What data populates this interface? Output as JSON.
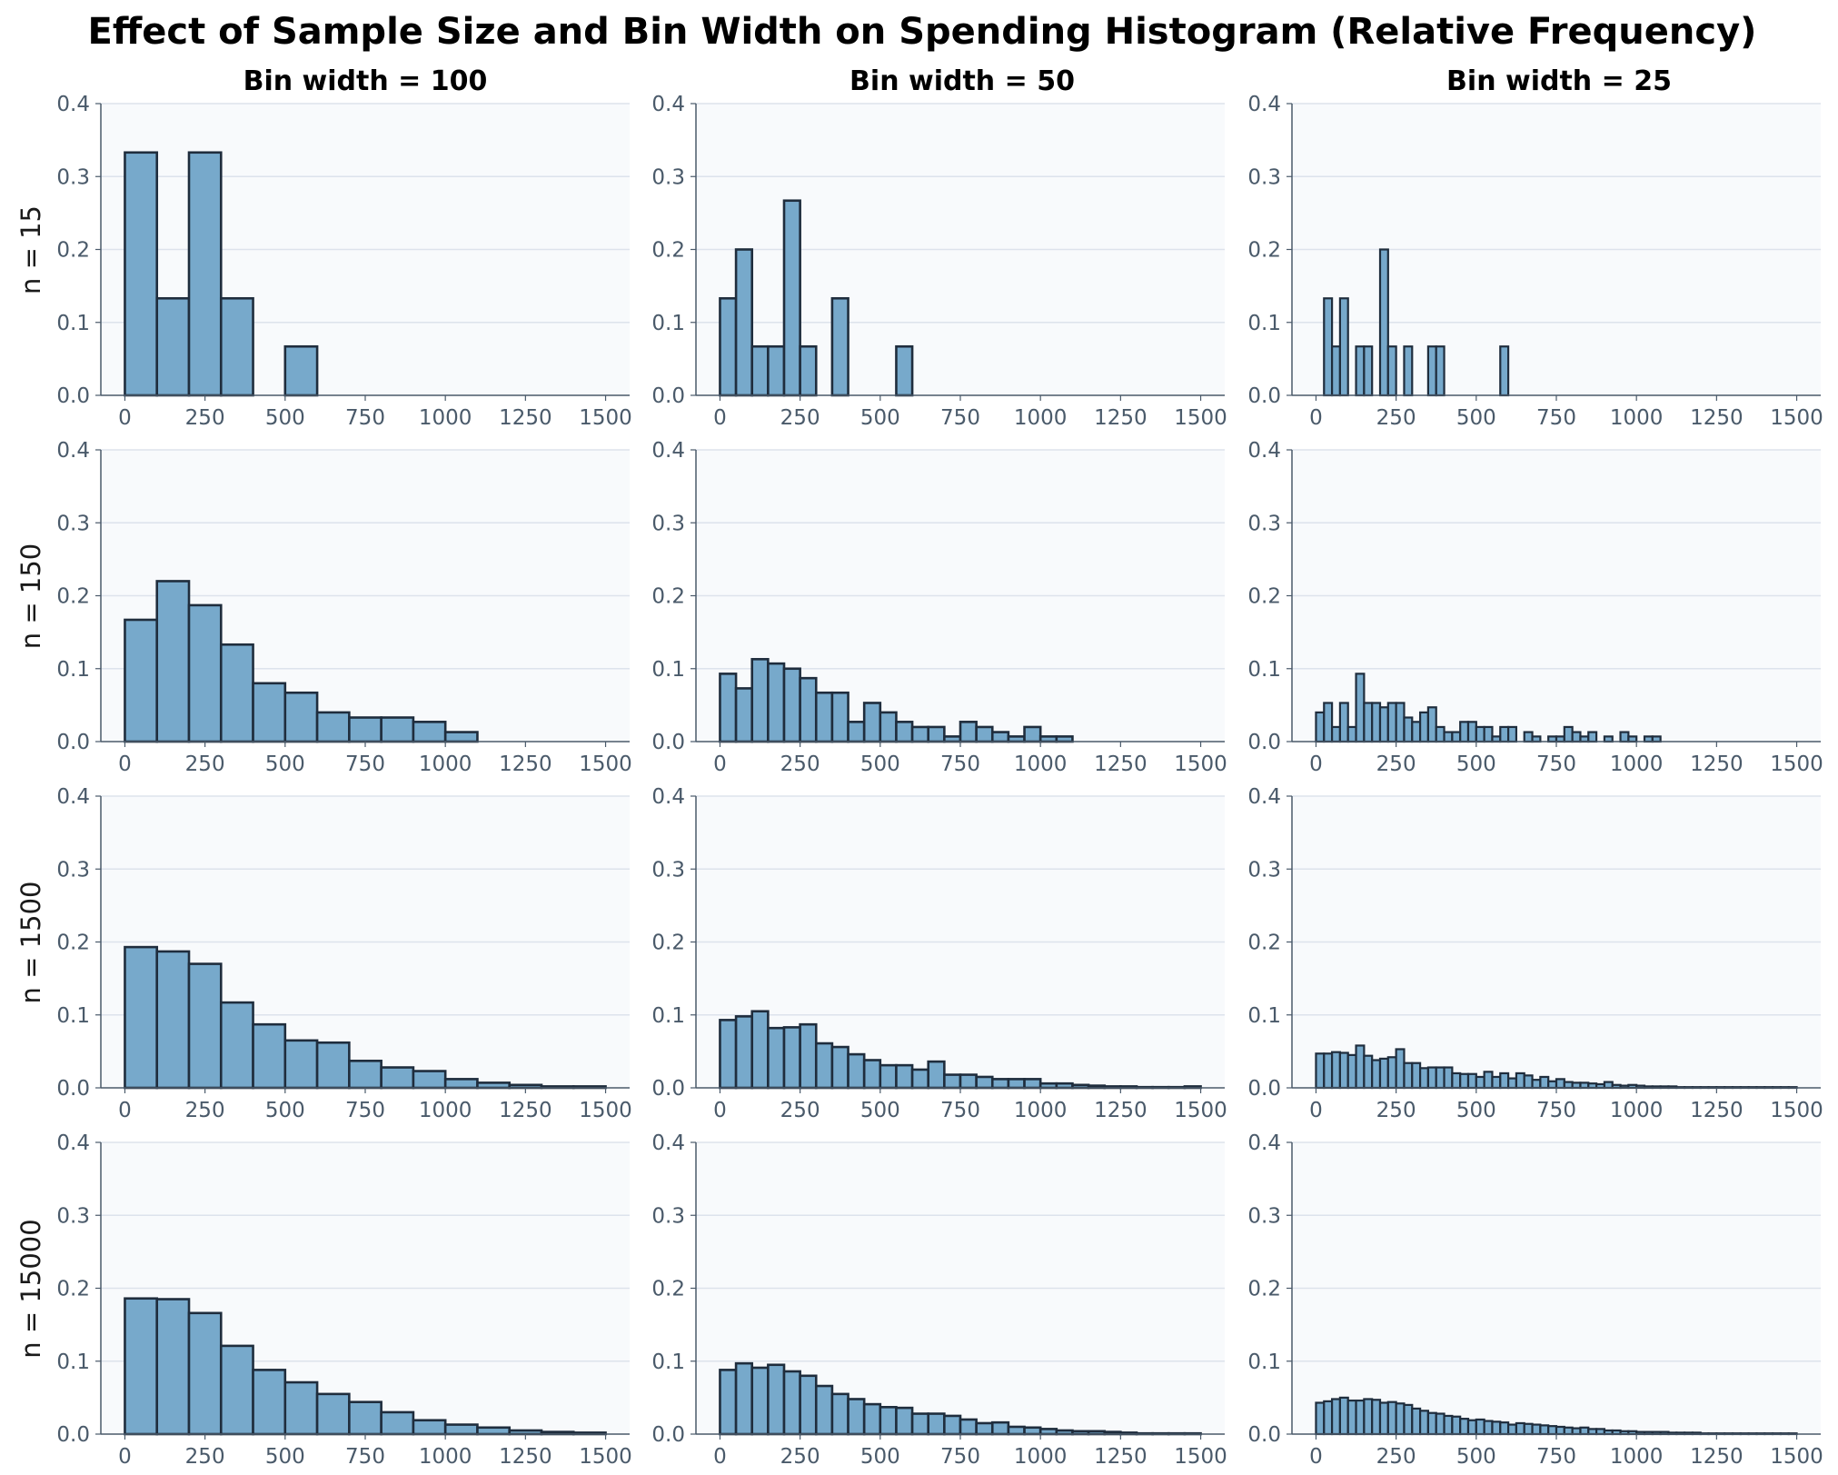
{
  "chart_data": {
    "type": "bar",
    "title": "Effect of Sample Size and Bin Width on Spending Histogram (Relative Frequency)",
    "column_titles": [
      "Bin width = 100",
      "Bin width = 50",
      "Bin width = 25"
    ],
    "row_labels": [
      "n = 15",
      "n = 150",
      "n = 1500",
      "n = 15000"
    ],
    "bin_widths": [
      100,
      50,
      25
    ],
    "xlim": [
      -75,
      1575
    ],
    "ylim": [
      0,
      0.4
    ],
    "xticks": [
      0,
      250,
      500,
      750,
      1000,
      1250,
      1500
    ],
    "yticks": [
      0.0,
      0.1,
      0.2,
      0.3,
      0.4
    ],
    "xtick_labels": [
      "0",
      "250",
      "500",
      "750",
      "1000",
      "1250",
      "1500"
    ],
    "ytick_labels": [
      "0.0",
      "0.1",
      "0.2",
      "0.3",
      "0.4"
    ],
    "grid": "horizontal",
    "bar_color": "#77a9cb",
    "edge_color": "#1f2d3d",
    "axes_bg": "#f8fafc",
    "grid_color": "#dde3ec",
    "tick_color": "#4a5a6a",
    "panels": [
      [
        {
          "bin_width": 100,
          "values": [
            0.333,
            0.133,
            0.333,
            0.133,
            0,
            0.067
          ]
        },
        {
          "bin_width": 50,
          "values": [
            0.133,
            0.2,
            0.067,
            0.067,
            0.267,
            0.067,
            0,
            0.133,
            0,
            0,
            0,
            0.067
          ]
        },
        {
          "bin_width": 25,
          "values": [
            0,
            0.133,
            0.067,
            0.133,
            0,
            0.067,
            0.067,
            0,
            0.2,
            0.067,
            0,
            0.067,
            0,
            0,
            0.067,
            0.067,
            0,
            0,
            0,
            0,
            0,
            0,
            0,
            0.067
          ]
        }
      ],
      [
        {
          "bin_width": 100,
          "values": [
            0.167,
            0.22,
            0.187,
            0.133,
            0.08,
            0.067,
            0.04,
            0.033,
            0.033,
            0.027,
            0.013
          ]
        },
        {
          "bin_width": 50,
          "values": [
            0.093,
            0.073,
            0.113,
            0.107,
            0.1,
            0.087,
            0.067,
            0.067,
            0.027,
            0.053,
            0.04,
            0.027,
            0.02,
            0.02,
            0.007,
            0.027,
            0.02,
            0.013,
            0.007,
            0.02,
            0.007,
            0.007
          ]
        },
        {
          "bin_width": 25,
          "values": [
            0.04,
            0.053,
            0.02,
            0.053,
            0.02,
            0.093,
            0.053,
            0.053,
            0.047,
            0.053,
            0.053,
            0.033,
            0.027,
            0.04,
            0.047,
            0.02,
            0.013,
            0.013,
            0.027,
            0.027,
            0.02,
            0.02,
            0.007,
            0.02,
            0.02,
            0,
            0.013,
            0.007,
            0,
            0.007,
            0.007,
            0.02,
            0.013,
            0.007,
            0.013,
            0,
            0.007,
            0,
            0.013,
            0.007,
            0,
            0.007,
            0.007
          ]
        }
      ],
      [
        {
          "bin_width": 100,
          "values": [
            0.193,
            0.187,
            0.17,
            0.117,
            0.087,
            0.065,
            0.062,
            0.037,
            0.028,
            0.023,
            0.012,
            0.007,
            0.004,
            0.002,
            0.002
          ]
        },
        {
          "bin_width": 50,
          "values": [
            0.093,
            0.098,
            0.105,
            0.082,
            0.083,
            0.087,
            0.061,
            0.056,
            0.046,
            0.038,
            0.031,
            0.031,
            0.025,
            0.036,
            0.018,
            0.018,
            0.015,
            0.012,
            0.012,
            0.012,
            0.006,
            0.006,
            0.004,
            0.003,
            0.002,
            0.002,
            0.001,
            0.001,
            0.001,
            0.002
          ]
        },
        {
          "bin_width": 25,
          "values": [
            0.047,
            0.047,
            0.049,
            0.048,
            0.045,
            0.058,
            0.044,
            0.038,
            0.04,
            0.042,
            0.053,
            0.034,
            0.034,
            0.027,
            0.028,
            0.028,
            0.028,
            0.02,
            0.019,
            0.019,
            0.015,
            0.022,
            0.015,
            0.02,
            0.013,
            0.02,
            0.017,
            0.011,
            0.015,
            0.009,
            0.012,
            0.008,
            0.007,
            0.007,
            0.006,
            0.005,
            0.008,
            0.004,
            0.003,
            0.004,
            0.003,
            0.002,
            0.002,
            0.002,
            0.002,
            0.001,
            0.001,
            0.001,
            0.001,
            0.001,
            0.001,
            0.001,
            0.001,
            0.001,
            0.001,
            0.001,
            0.001,
            0.001,
            0.001,
            0.001
          ]
        }
      ],
      [
        {
          "bin_width": 100,
          "values": [
            0.186,
            0.185,
            0.166,
            0.121,
            0.088,
            0.071,
            0.055,
            0.044,
            0.03,
            0.019,
            0.013,
            0.009,
            0.005,
            0.003,
            0.002
          ]
        },
        {
          "bin_width": 50,
          "values": [
            0.088,
            0.097,
            0.091,
            0.095,
            0.086,
            0.08,
            0.066,
            0.055,
            0.048,
            0.041,
            0.037,
            0.036,
            0.028,
            0.028,
            0.025,
            0.02,
            0.015,
            0.016,
            0.01,
            0.009,
            0.007,
            0.005,
            0.004,
            0.004,
            0.003,
            0.002,
            0.001,
            0.001,
            0.001,
            0.001
          ]
        },
        {
          "bin_width": 25,
          "values": [
            0.043,
            0.045,
            0.048,
            0.05,
            0.046,
            0.046,
            0.048,
            0.047,
            0.043,
            0.044,
            0.042,
            0.04,
            0.035,
            0.032,
            0.029,
            0.028,
            0.025,
            0.024,
            0.021,
            0.019,
            0.02,
            0.018,
            0.017,
            0.016,
            0.013,
            0.015,
            0.014,
            0.013,
            0.012,
            0.011,
            0.01,
            0.009,
            0.008,
            0.009,
            0.007,
            0.007,
            0.005,
            0.005,
            0.004,
            0.004,
            0.003,
            0.003,
            0.003,
            0.003,
            0.002,
            0.002,
            0.002,
            0.002,
            0.001,
            0.001,
            0.001,
            0.001,
            0.001,
            0.001,
            0.001,
            0.001,
            0.001,
            0.001,
            0.001,
            0.001
          ]
        }
      ]
    ]
  }
}
